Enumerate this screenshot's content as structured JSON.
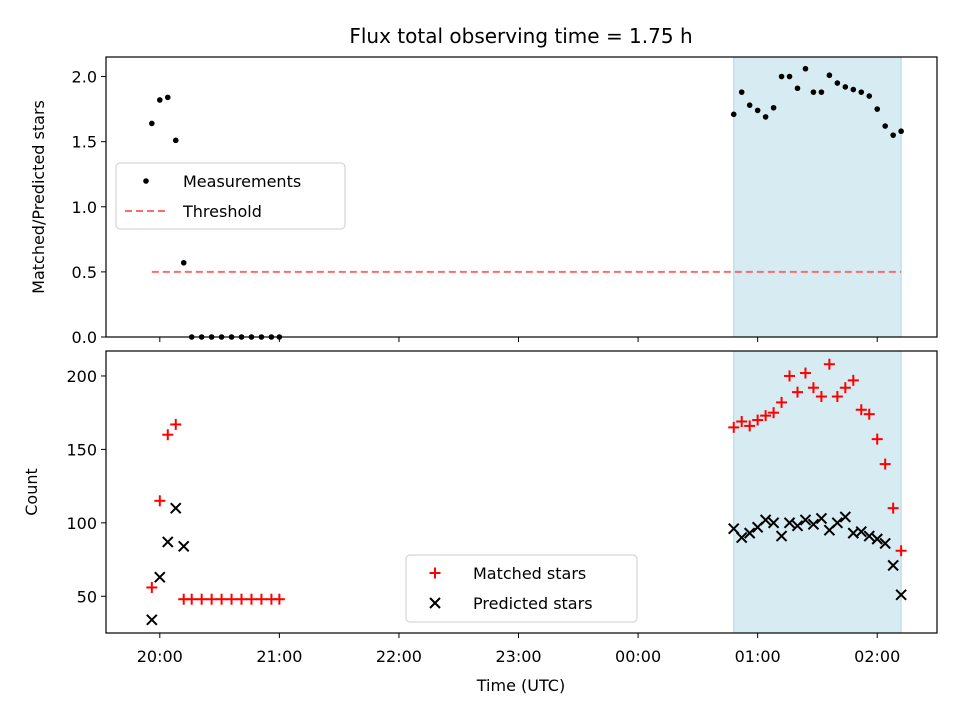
{
  "title": "Flux total observing time = 1.75 h",
  "colors": {
    "measurement": "#000000",
    "threshold": "#ff6b6b",
    "matched": "#ff0000",
    "predicted": "#000000",
    "shade": "#add8e6"
  },
  "chart_data": [
    {
      "type": "scatter",
      "ylabel": "Matched/Predicted stars",
      "ylim": [
        0,
        2.15
      ],
      "yticks": [
        0.0,
        0.5,
        1.0,
        1.5,
        2.0
      ],
      "ytick_labels": [
        "0.0",
        "0.5",
        "1.0",
        "1.5",
        "2.0"
      ],
      "legend": {
        "placement": "left",
        "entries": [
          "Measurements",
          "Threshold"
        ]
      },
      "series": [
        {
          "name": "Measurements",
          "x": [
            "19:56",
            "20:00",
            "20:04",
            "20:08",
            "20:12",
            "20:16",
            "20:21",
            "20:26",
            "20:31",
            "20:36",
            "20:41",
            "20:46",
            "20:51",
            "20:56",
            "21:00",
            "00:48",
            "00:52",
            "00:56",
            "01:00",
            "01:04",
            "01:08",
            "01:12",
            "01:16",
            "01:20",
            "01:24",
            "01:28",
            "01:32",
            "01:36",
            "01:40",
            "01:44",
            "01:48",
            "01:52",
            "01:56",
            "02:00",
            "02:04",
            "02:08",
            "02:12"
          ],
          "y": [
            1.64,
            1.82,
            1.84,
            1.51,
            0.57,
            0,
            0,
            0,
            0,
            0,
            0,
            0,
            0,
            0,
            0,
            1.71,
            1.88,
            1.78,
            1.74,
            1.69,
            1.76,
            2.0,
            2.0,
            1.91,
            2.06,
            1.88,
            1.88,
            2.01,
            1.95,
            1.92,
            1.9,
            1.88,
            1.85,
            1.75,
            1.62,
            1.55,
            1.58
          ]
        }
      ],
      "threshold": {
        "name": "Threshold",
        "y": 0.5,
        "x_range": [
          "19:56",
          "02:12"
        ]
      },
      "shaded_x": [
        "00:48",
        "02:12"
      ]
    },
    {
      "type": "scatter",
      "xlabel": "Time (UTC)",
      "ylabel": "Count",
      "ylim": [
        25,
        217
      ],
      "yticks": [
        50,
        100,
        150,
        200
      ],
      "ytick_labels": [
        "50",
        "100",
        "150",
        "200"
      ],
      "legend": {
        "placement": "bottom-center",
        "entries": [
          "Matched stars",
          "Predicted stars"
        ]
      },
      "series": [
        {
          "name": "Matched stars",
          "x": [
            "19:56",
            "20:00",
            "20:04",
            "20:08",
            "20:12",
            "20:16",
            "20:21",
            "20:26",
            "20:31",
            "20:36",
            "20:41",
            "20:46",
            "20:51",
            "20:56",
            "21:00",
            "00:48",
            "00:52",
            "00:56",
            "01:00",
            "01:04",
            "01:08",
            "01:12",
            "01:16",
            "01:20",
            "01:24",
            "01:28",
            "01:32",
            "01:36",
            "01:40",
            "01:44",
            "01:48",
            "01:52",
            "01:56",
            "02:00",
            "02:04",
            "02:08",
            "02:12"
          ],
          "y": [
            56,
            115,
            160,
            167,
            48,
            48,
            48,
            48,
            48,
            48,
            48,
            48,
            48,
            48,
            48,
            165,
            169,
            166,
            170,
            173,
            175,
            182,
            200,
            189,
            202,
            192,
            186,
            208,
            186,
            192,
            197,
            177,
            174,
            157,
            140,
            110,
            81
          ]
        },
        {
          "name": "Predicted stars",
          "x": [
            "19:56",
            "20:00",
            "20:04",
            "20:08",
            "20:12",
            "00:48",
            "00:52",
            "00:56",
            "01:00",
            "01:04",
            "01:08",
            "01:12",
            "01:16",
            "01:20",
            "01:24",
            "01:28",
            "01:32",
            "01:36",
            "01:40",
            "01:44",
            "01:48",
            "01:52",
            "01:56",
            "02:00",
            "02:04",
            "02:08",
            "02:12"
          ],
          "y": [
            34,
            63,
            87,
            110,
            84,
            96,
            90,
            93,
            97,
            102,
            100,
            91,
            100,
            98,
            102,
            99,
            103,
            95,
            100,
            104,
            93,
            94,
            91,
            89,
            86,
            71,
            51
          ]
        }
      ],
      "shaded_x": [
        "00:48",
        "02:12"
      ]
    }
  ],
  "x_axis": {
    "range": [
      "19:33",
      "02:30"
    ],
    "ticks": [
      "20:00",
      "21:00",
      "22:00",
      "23:00",
      "00:00",
      "01:00",
      "02:00"
    ],
    "tick_labels": [
      "20:00",
      "21:00",
      "22:00",
      "23:00",
      "00:00",
      "01:00",
      "02:00"
    ]
  }
}
